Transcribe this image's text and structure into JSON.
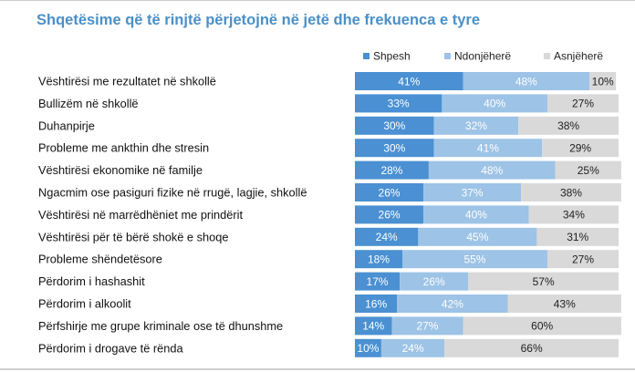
{
  "chart_data": {
    "type": "bar",
    "stacked": true,
    "orientation": "horizontal",
    "percent_stacked": true,
    "title": "Shqetësime që të rinjtë përjetojnë në jetë dhe frekuenca e tyre",
    "legend_position": "top-right",
    "categories": [
      "Vështirësi me rezultatet në shkollë",
      "Bullizëm në shkollë",
      "Duhanpirje",
      "Probleme me ankthin dhe stresin",
      "Vështirësi ekonomike në familje",
      "Ngacmim ose pasiguri fizike në rrugë, lagjie, shkollë",
      "Vështirësi në marrëdhëniet me prindërit",
      "Vështirësi për të bërë shokë e shoqe",
      "Probleme shëndetësore",
      "Përdorim i hashashit",
      "Përdorim i alkoolit",
      "Përfshirje me grupe kriminale ose të dhunshme",
      "Përdorim i drogave të rënda"
    ],
    "series": [
      {
        "name": "Shpesh",
        "color": "#4a90d2",
        "label_color": "#ffffff",
        "values": [
          41,
          33,
          30,
          30,
          28,
          26,
          26,
          24,
          18,
          17,
          16,
          14,
          10
        ]
      },
      {
        "name": "Ndonjëherë",
        "color": "#9dc3e6",
        "label_color": "#ffffff",
        "values": [
          48,
          40,
          32,
          41,
          48,
          37,
          40,
          45,
          55,
          26,
          42,
          27,
          24
        ]
      },
      {
        "name": "Asnjëherë",
        "color": "#d9d9d9",
        "label_color": "#222222",
        "values": [
          10,
          27,
          38,
          29,
          25,
          38,
          34,
          31,
          27,
          57,
          43,
          60,
          66
        ]
      }
    ],
    "value_suffix": "%",
    "xlim": [
      0,
      100
    ]
  }
}
